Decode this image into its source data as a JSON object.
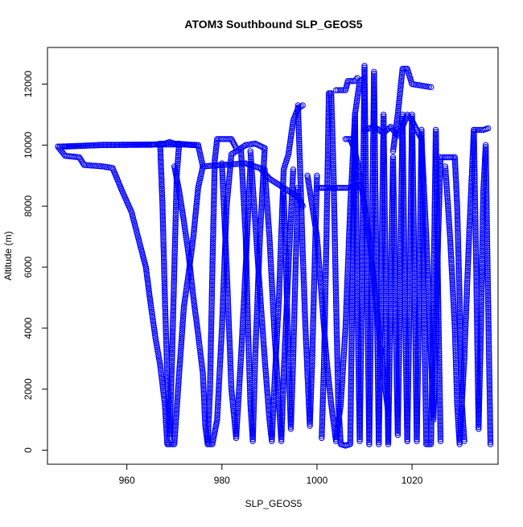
{
  "chart_data": {
    "type": "scatter",
    "title": "ATOM3 Southbound SLP_GEOS5",
    "xlabel": "SLP_GEOS5",
    "ylabel": "Altitude (m)",
    "xlim": [
      943.3,
      1038.1
    ],
    "ylim": [
      -460,
      13200
    ],
    "x_ticks": [
      960,
      980,
      1000,
      1020
    ],
    "y_ticks": [
      0,
      2000,
      4000,
      6000,
      8000,
      10000,
      12000
    ],
    "grid": false,
    "marker": "open-circle",
    "series": [
      {
        "color": "#0000ff",
        "profiles": [
          [
            [
              945.5,
              9950
            ],
            [
              947,
              9650
            ],
            [
              950,
              9600
            ],
            [
              951,
              9350
            ],
            [
              955,
              9300
            ],
            [
              957,
              9250
            ],
            [
              959,
              8500
            ],
            [
              961,
              7800
            ],
            [
              963,
              6600
            ],
            [
              964,
              6000
            ],
            [
              965,
              4800
            ],
            [
              966,
              3700
            ],
            [
              967,
              2800
            ],
            [
              968,
              1500
            ],
            [
              968.5,
              200
            ],
            [
              969,
              200
            ],
            [
              970,
              200
            ],
            [
              971,
              2500
            ],
            [
              972,
              4700
            ],
            [
              973,
              5800
            ],
            [
              974,
              7000
            ],
            [
              975,
              8600
            ],
            [
              976,
              9300
            ],
            [
              980,
              9350
            ],
            [
              985,
              9400
            ],
            [
              988,
              9250
            ],
            [
              990,
              8900
            ],
            [
              993,
              8600
            ],
            [
              996,
              8300
            ],
            [
              997,
              8000
            ]
          ],
          [
            [
              945.5,
              9950
            ],
            [
              955,
              10000
            ],
            [
              965,
              10010
            ],
            [
              968,
              10050
            ],
            [
              969,
              10100
            ],
            [
              970,
              10050
            ],
            [
              975,
              10000
            ],
            [
              976,
              9300
            ]
          ],
          [
            [
              947,
              9950
            ],
            [
              955,
              10010
            ],
            [
              966,
              10020
            ],
            [
              972,
              10020
            ],
            [
              975,
              9990
            ]
          ],
          [
            [
              967,
              10050
            ],
            [
              967.5,
              8000
            ],
            [
              968,
              5000
            ],
            [
              968.5,
              2500
            ],
            [
              969,
              400
            ],
            [
              969.5,
              3000
            ],
            [
              970,
              6000
            ],
            [
              970.5,
              9000
            ],
            [
              971,
              10050
            ]
          ],
          [
            [
              970,
              9300
            ],
            [
              971,
              8500
            ],
            [
              972,
              7500
            ],
            [
              973,
              6400
            ],
            [
              974,
              5000
            ],
            [
              975,
              3800
            ],
            [
              976,
              2500
            ],
            [
              976.5,
              800
            ],
            [
              977,
              200
            ],
            [
              977.5,
              2000
            ],
            [
              978,
              6000
            ],
            [
              978.5,
              9500
            ],
            [
              979,
              10200
            ],
            [
              982,
              10200
            ],
            [
              983,
              9900
            ]
          ],
          [
            [
              977,
              200
            ],
            [
              978,
              200
            ],
            [
              979,
              1000
            ],
            [
              980,
              4000
            ],
            [
              981,
              8000
            ],
            [
              982,
              9700
            ],
            [
              983,
              9800
            ],
            [
              985,
              10000
            ],
            [
              987,
              10050
            ],
            [
              989,
              9900
            ]
          ],
          [
            [
              980,
              9400
            ],
            [
              981,
              6000
            ],
            [
              982,
              2000
            ],
            [
              983,
              400
            ],
            [
              984,
              3000
            ],
            [
              985,
              6000
            ],
            [
              986,
              9400
            ]
          ],
          [
            [
              984,
              9900
            ],
            [
              985,
              7000
            ],
            [
              985.5,
              4000
            ],
            [
              986,
              1500
            ],
            [
              986.5,
              300
            ],
            [
              987,
              3000
            ],
            [
              988,
              7000
            ],
            [
              989,
              9900
            ]
          ],
          [
            [
              986,
              9800
            ],
            [
              987,
              7500
            ],
            [
              988,
              5200
            ],
            [
              989,
              3000
            ],
            [
              990,
              1000
            ],
            [
              990.5,
              300
            ],
            [
              991,
              2000
            ],
            [
              992,
              5000
            ],
            [
              993,
              9200
            ],
            [
              994,
              9700
            ],
            [
              995,
              10800
            ],
            [
              996,
              11200
            ],
            [
              997,
              11300
            ]
          ],
          [
            [
              989,
              9200
            ],
            [
              990,
              7000
            ],
            [
              991,
              4000
            ],
            [
              992,
              1500
            ],
            [
              992.5,
              300
            ],
            [
              993,
              2500
            ],
            [
              994,
              6000
            ],
            [
              995,
              9200
            ]
          ],
          [
            [
              993,
              8400
            ],
            [
              993.5,
              6000
            ],
            [
              994,
              3000
            ],
            [
              994.5,
              700
            ],
            [
              995,
              3000
            ],
            [
              995.5,
              6000
            ],
            [
              996,
              8600
            ]
          ],
          [
            [
              996,
              11300
            ],
            [
              996.5,
              9000
            ],
            [
              997,
              6500
            ],
            [
              997.5,
              4300
            ],
            [
              998,
              2500
            ],
            [
              998.5,
              800
            ],
            [
              999,
              3000
            ],
            [
              999.5,
              6000
            ],
            [
              1000,
              9000
            ]
          ],
          [
            [
              998,
              9000
            ],
            [
              999,
              8000
            ],
            [
              1000,
              7000
            ],
            [
              1001,
              5000
            ],
            [
              1002,
              3000
            ],
            [
              1003,
              1500
            ],
            [
              1004,
              300
            ],
            [
              1005,
              1500
            ],
            [
              1006,
              4000
            ],
            [
              1007,
              8000
            ],
            [
              1008,
              11000
            ],
            [
              1009,
              12100
            ],
            [
              1010,
              12200
            ]
          ],
          [
            [
              1000,
              8600
            ],
            [
              1003,
              8600
            ],
            [
              1006,
              8600
            ],
            [
              1008,
              8600
            ],
            [
              1009,
              8700
            ]
          ],
          [
            [
              1001,
              400
            ],
            [
              1001.5,
              3000
            ],
            [
              1002,
              7000
            ],
            [
              1002.5,
              11700
            ],
            [
              1003,
              11700
            ],
            [
              1003.5,
              9000
            ],
            [
              1004,
              5000
            ],
            [
              1004.5,
              1500
            ],
            [
              1005,
              200
            ]
          ],
          [
            [
              1004,
              11800
            ],
            [
              1006,
              11800
            ],
            [
              1006.5,
              12100
            ],
            [
              1008,
              12100
            ],
            [
              1008.5,
              12200
            ]
          ],
          [
            [
              1005,
              200
            ],
            [
              1006,
              150
            ],
            [
              1007,
              200
            ],
            [
              1007.5,
              6000
            ],
            [
              1008,
              11000
            ],
            [
              1008.5,
              5000
            ],
            [
              1009,
              300
            ],
            [
              1009.5,
              6000
            ],
            [
              1010,
              12600
            ],
            [
              1010.5,
              6000
            ],
            [
              1011,
              200
            ]
          ],
          [
            [
              1006,
              10200
            ],
            [
              1007,
              10200
            ],
            [
              1008,
              9800
            ],
            [
              1009,
              9000
            ],
            [
              1010,
              8000
            ],
            [
              1011,
              7000
            ],
            [
              1012,
              5500
            ],
            [
              1013,
              4000
            ],
            [
              1014,
              2500
            ],
            [
              1015,
              1200
            ]
          ],
          [
            [
              1011,
              200
            ],
            [
              1011.5,
              6000
            ],
            [
              1012,
              12400
            ],
            [
              1012.5,
              6000
            ],
            [
              1013,
              200
            ],
            [
              1013.5,
              5000
            ],
            [
              1014,
              11000
            ],
            [
              1014.5,
              5000
            ],
            [
              1015,
              200
            ]
          ],
          [
            [
              1015,
              300
            ],
            [
              1015.5,
              5000
            ],
            [
              1016,
              9600
            ],
            [
              1016.5,
              5000
            ],
            [
              1017,
              500
            ],
            [
              1017.5,
              5500
            ],
            [
              1018,
              11000
            ],
            [
              1018.5,
              5000
            ],
            [
              1019,
              300
            ]
          ],
          [
            [
              1010,
              10500
            ],
            [
              1012,
              10600
            ],
            [
              1014,
              10400
            ],
            [
              1015.5,
              10600
            ],
            [
              1017,
              10300
            ],
            [
              1018,
              10600
            ],
            [
              1019,
              11000
            ],
            [
              1020,
              10800
            ],
            [
              1021,
              10500
            ],
            [
              1022,
              10200
            ]
          ],
          [
            [
              1016,
              9800
            ],
            [
              1017,
              11000
            ],
            [
              1018,
              12500
            ],
            [
              1019,
              12500
            ],
            [
              1020,
              12000
            ],
            [
              1022,
              11950
            ],
            [
              1024,
              11900
            ]
          ],
          [
            [
              1019,
              300
            ],
            [
              1019.5,
              5000
            ],
            [
              1020,
              11000
            ],
            [
              1020.5,
              6000
            ],
            [
              1021,
              300
            ],
            [
              1021.5,
              5000
            ],
            [
              1022,
              10500
            ],
            [
              1022.5,
              5000
            ],
            [
              1023,
              200
            ]
          ],
          [
            [
              1022,
              10200
            ],
            [
              1023,
              7000
            ],
            [
              1024,
              3000
            ],
            [
              1024.5,
              1000
            ],
            [
              1025,
              3500
            ],
            [
              1025.5,
              7000
            ],
            [
              1026,
              9600
            ],
            [
              1029,
              9600
            ]
          ],
          [
            [
              1023,
              200
            ],
            [
              1024,
              200
            ],
            [
              1024.5,
              5000
            ],
            [
              1025,
              10500
            ],
            [
              1025.5,
              5000
            ],
            [
              1026,
              300
            ]
          ],
          [
            [
              1027,
              9300
            ],
            [
              1028,
              7000
            ],
            [
              1029,
              4000
            ],
            [
              1029.5,
              1500
            ],
            [
              1030,
              200
            ],
            [
              1031,
              3000
            ],
            [
              1032,
              7000
            ],
            [
              1033,
              10500
            ],
            [
              1035,
              10500
            ],
            [
              1036,
              10550
            ]
          ],
          [
            [
              1029,
              9600
            ],
            [
              1029.5,
              8000
            ],
            [
              1030,
              5000
            ],
            [
              1030.5,
              1500
            ],
            [
              1031,
              300
            ]
          ],
          [
            [
              1033,
              10500
            ],
            [
              1033.5,
              6000
            ],
            [
              1034,
              700
            ],
            [
              1034.5,
              4000
            ],
            [
              1035,
              8500
            ],
            [
              1035.5,
              10000
            ],
            [
              1036,
              5000
            ],
            [
              1036.5,
              200
            ]
          ]
        ]
      }
    ]
  }
}
